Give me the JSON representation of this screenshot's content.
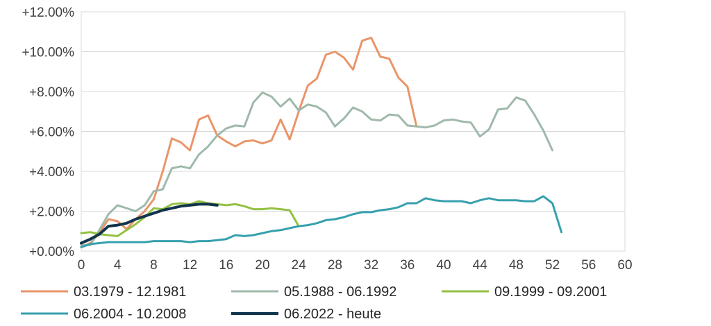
{
  "chart_data": {
    "type": "line",
    "title": "",
    "xlabel": "",
    "ylabel": "",
    "xlim": [
      0,
      60
    ],
    "ylim": [
      0,
      12
    ],
    "x_ticks": [
      0,
      4,
      8,
      12,
      16,
      20,
      24,
      28,
      32,
      36,
      40,
      44,
      48,
      52,
      56,
      60
    ],
    "y_ticks": [
      0,
      2,
      4,
      6,
      8,
      10,
      12
    ],
    "x_tick_labels": [
      "0",
      "4",
      "8",
      "12",
      "16",
      "20",
      "24",
      "28",
      "32",
      "36",
      "40",
      "44",
      "48",
      "52",
      "56",
      "60"
    ],
    "y_tick_labels": [
      "+0.00%",
      "+2.00%",
      "+4.00%",
      "+6.00%",
      "+8.00%",
      "+10.00%",
      "+12.00%"
    ],
    "grid": "horizontal",
    "legend_position": "bottom",
    "series": [
      {
        "name": "03.1979 - 12.1981",
        "color": "#e9956a",
        "width": 3,
        "values": [
          0.2,
          0.4,
          0.9,
          1.6,
          1.5,
          1.1,
          1.6,
          2.0,
          2.6,
          4.0,
          5.65,
          5.45,
          5.05,
          6.6,
          6.8,
          5.8,
          5.5,
          5.25,
          5.5,
          5.55,
          5.4,
          5.55,
          6.6,
          5.6,
          7.0,
          8.3,
          8.65,
          9.85,
          10.0,
          9.7,
          9.1,
          10.55,
          10.7,
          9.75,
          9.65,
          8.7,
          8.25,
          6.25
        ]
      },
      {
        "name": "05.1988 - 06.1992",
        "color": "#9fb9ab",
        "width": 3,
        "values": [
          0.3,
          0.3,
          1.05,
          1.85,
          2.3,
          2.15,
          2.0,
          2.3,
          3.0,
          3.1,
          4.15,
          4.25,
          4.15,
          4.85,
          5.25,
          5.8,
          6.15,
          6.3,
          6.25,
          7.45,
          7.95,
          7.75,
          7.25,
          7.65,
          7.05,
          7.35,
          7.25,
          6.95,
          6.25,
          6.65,
          7.2,
          7.0,
          6.6,
          6.55,
          6.85,
          6.8,
          6.3,
          6.25,
          6.2,
          6.3,
          6.55,
          6.6,
          6.5,
          6.45,
          5.75,
          6.1,
          7.1,
          7.15,
          7.7,
          7.55,
          6.85,
          6.05,
          5.05
        ]
      },
      {
        "name": "09.1999 - 09.2001",
        "color": "#93c142",
        "width": 3,
        "values": [
          0.9,
          0.95,
          0.85,
          0.8,
          0.75,
          1.05,
          1.35,
          1.7,
          2.15,
          2.1,
          2.35,
          2.4,
          2.35,
          2.5,
          2.4,
          2.35,
          2.3,
          2.35,
          2.25,
          2.1,
          2.1,
          2.15,
          2.1,
          2.05,
          1.25
        ]
      },
      {
        "name": "06.2004 - 10.2008",
        "color": "#36a0ad",
        "width": 3,
        "values": [
          0.2,
          0.35,
          0.4,
          0.45,
          0.45,
          0.45,
          0.45,
          0.45,
          0.5,
          0.5,
          0.5,
          0.5,
          0.45,
          0.5,
          0.5,
          0.55,
          0.6,
          0.8,
          0.75,
          0.8,
          0.9,
          1.0,
          1.05,
          1.15,
          1.25,
          1.3,
          1.4,
          1.55,
          1.6,
          1.7,
          1.85,
          1.95,
          1.95,
          2.05,
          2.1,
          2.2,
          2.4,
          2.4,
          2.65,
          2.55,
          2.5,
          2.5,
          2.5,
          2.4,
          2.55,
          2.65,
          2.55,
          2.55,
          2.55,
          2.5,
          2.5,
          2.75,
          2.4,
          0.95
        ]
      },
      {
        "name": "06.2022 - heute",
        "color": "#12344d",
        "width": 4,
        "values": [
          0.4,
          0.6,
          0.85,
          1.25,
          1.3,
          1.4,
          1.6,
          1.75,
          1.9,
          2.05,
          2.15,
          2.25,
          2.3,
          2.35,
          2.35,
          2.3
        ]
      }
    ]
  }
}
